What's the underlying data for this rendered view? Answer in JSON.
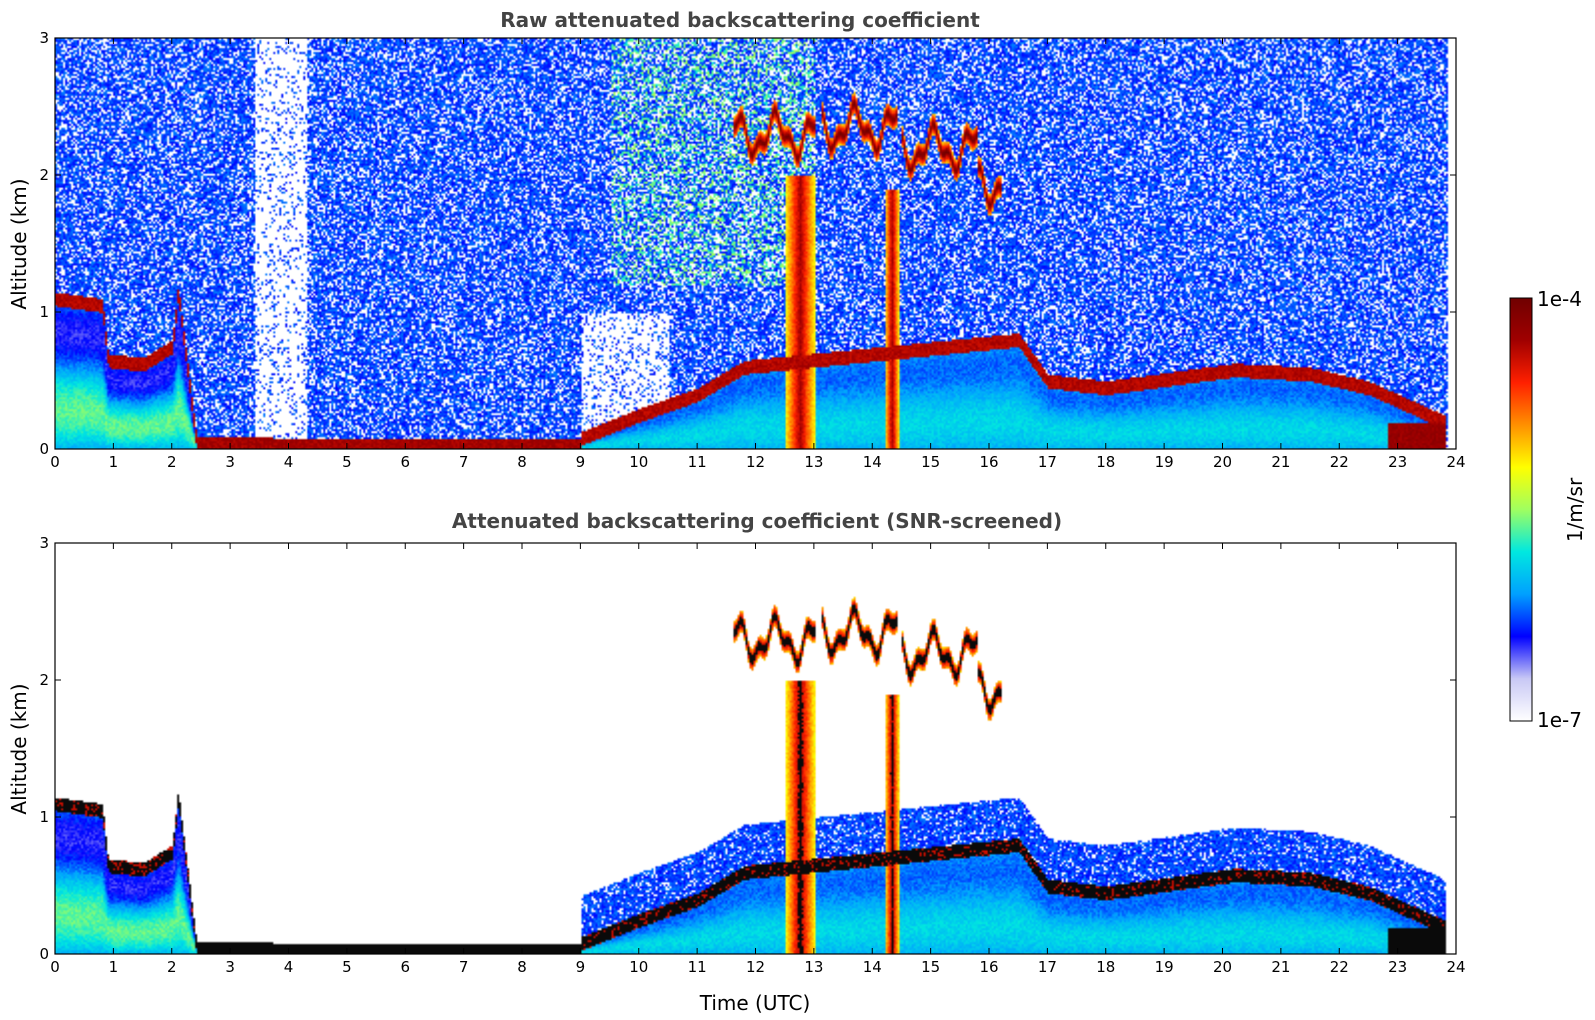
{
  "chart_data": [
    {
      "type": "heatmap",
      "title": "Raw attenuated backscattering coefficient",
      "xlabel": "",
      "ylabel": "Altitude (km)",
      "xlim": [
        0,
        24
      ],
      "ylim": [
        0,
        3
      ],
      "xticks": [
        "0",
        "1",
        "2",
        "3",
        "4",
        "5",
        "6",
        "7",
        "8",
        "9",
        "10",
        "11",
        "12",
        "13",
        "14",
        "15",
        "16",
        "17",
        "18",
        "19",
        "20",
        "21",
        "22",
        "23",
        "24"
      ],
      "yticks": [
        "0",
        "1",
        "2",
        "3"
      ],
      "boundary_layer_top_km": [
        [
          0,
          1.1
        ],
        [
          0.8,
          1.05
        ],
        [
          0.9,
          0.65
        ],
        [
          1.5,
          0.62
        ],
        [
          2.0,
          0.75
        ],
        [
          2.1,
          1.15
        ],
        [
          2.4,
          0.1
        ],
        [
          4.5,
          0.08
        ],
        [
          9.0,
          0.08
        ],
        [
          10.0,
          0.25
        ],
        [
          11.0,
          0.4
        ],
        [
          11.8,
          0.6
        ],
        [
          16.5,
          0.8
        ],
        [
          17.0,
          0.5
        ],
        [
          18.0,
          0.45
        ],
        [
          20.2,
          0.58
        ],
        [
          21.5,
          0.55
        ],
        [
          22.5,
          0.45
        ],
        [
          23.8,
          0.2
        ]
      ],
      "cloud_layers": [
        {
          "t_start": 11.6,
          "t_end": 13.0,
          "alt_km": 2.3
        },
        {
          "t_start": 13.1,
          "t_end": 14.4,
          "alt_km": 2.35
        },
        {
          "t_start": 14.5,
          "t_end": 15.8,
          "alt_km": 2.2
        },
        {
          "t_start": 15.8,
          "t_end": 16.2,
          "alt_km": 1.95
        }
      ],
      "precipitation_columns": [
        {
          "t_start": 12.5,
          "t_end": 13.0,
          "top_km": 2.0
        },
        {
          "t_start": 14.2,
          "t_end": 14.45,
          "top_km": 1.9
        }
      ]
    },
    {
      "type": "heatmap",
      "title": "Attenuated backscattering coefficient (SNR-screened)",
      "xlabel": "Time (UTC)",
      "ylabel": "Altitude (km)",
      "xlim": [
        0,
        24
      ],
      "ylim": [
        0,
        3
      ],
      "xticks": [
        "0",
        "1",
        "2",
        "3",
        "4",
        "5",
        "6",
        "7",
        "8",
        "9",
        "10",
        "11",
        "12",
        "13",
        "14",
        "15",
        "16",
        "17",
        "18",
        "19",
        "20",
        "21",
        "22",
        "23",
        "24"
      ],
      "yticks": [
        "0",
        "1",
        "2",
        "3"
      ],
      "screened_regions": "signal below SNR threshold shown as white"
    }
  ],
  "colorbar": {
    "min_label": "1e-7",
    "max_label": "1e-4",
    "unit": "1/m/sr",
    "scale": "log",
    "colormap": [
      "#ffffff",
      "#c8c8f5",
      "#0000ff",
      "#00a0ff",
      "#00e8e0",
      "#a0ff60",
      "#ffff00",
      "#ff9000",
      "#ff2000",
      "#a00000",
      "#700000"
    ]
  }
}
